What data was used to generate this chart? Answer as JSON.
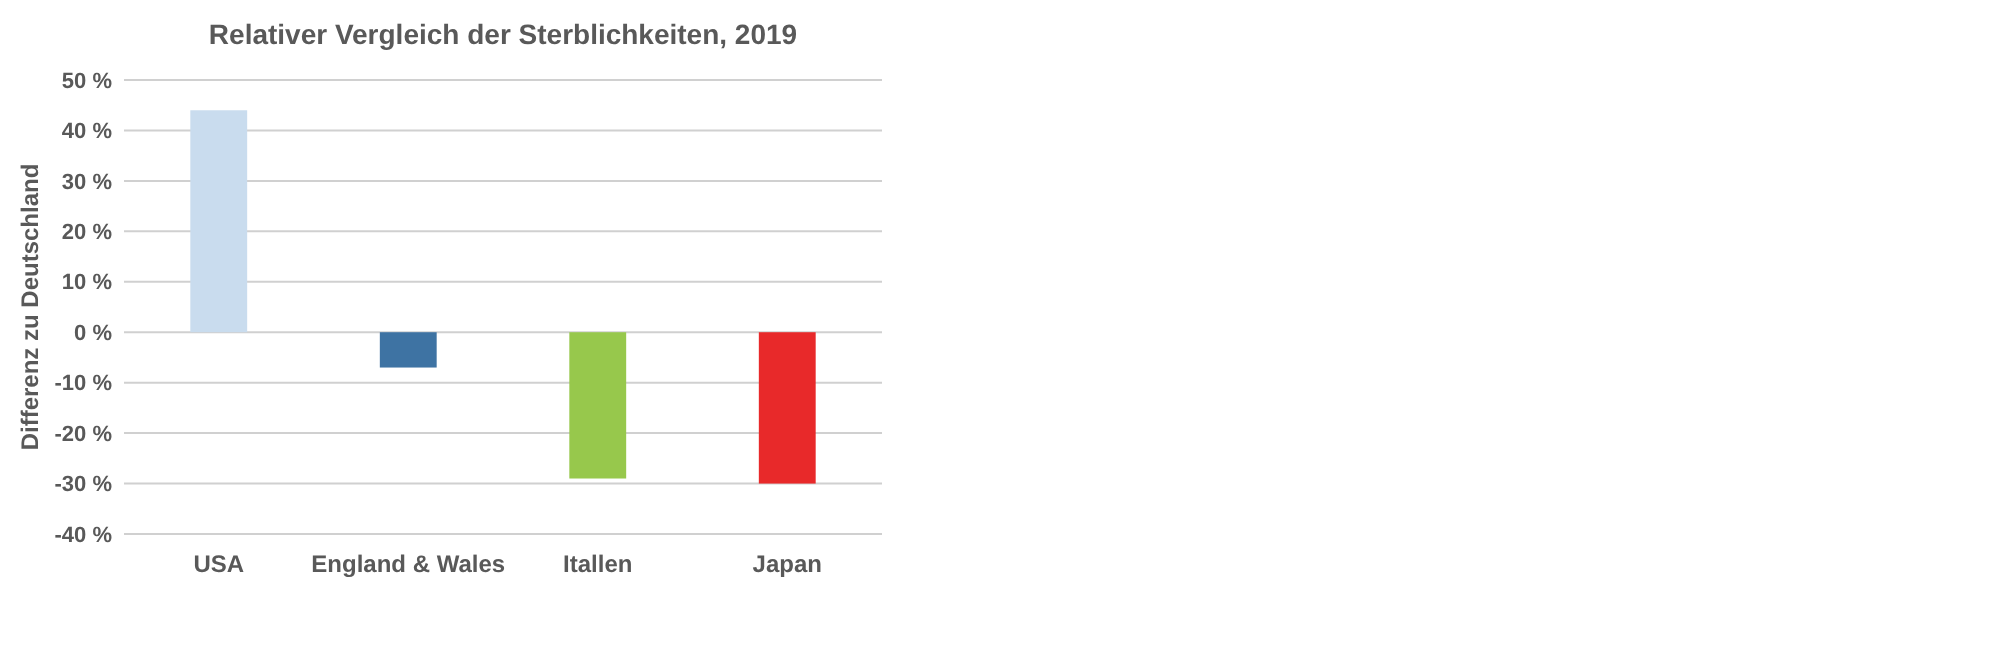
{
  "chart_data": {
    "type": "bar",
    "title": "Relativer Vergleich der Sterblichkeiten, 2019",
    "ylabel": "Differenz zu Deutschland",
    "categories": [
      "USA",
      "England & Wales",
      "Itallen",
      "Japan"
    ],
    "values": [
      44,
      -7,
      -29,
      -30
    ],
    "colors": [
      "#c9dcee",
      "#3e73a3",
      "#97c84c",
      "#e8292a"
    ],
    "ylim": [
      -40,
      50
    ],
    "yticks": [
      {
        "value": 50,
        "label": "50 %"
      },
      {
        "value": 40,
        "label": "40 %"
      },
      {
        "value": 30,
        "label": "30 %"
      },
      {
        "value": 20,
        "label": "20 %"
      },
      {
        "value": 10,
        "label": "10 %"
      },
      {
        "value": 0,
        "label": "0 %"
      },
      {
        "value": -10,
        "label": "-10 %"
      },
      {
        "value": -20,
        "label": "-20 %"
      },
      {
        "value": -30,
        "label": "-30 %"
      },
      {
        "value": -40,
        "label": "-40 %"
      }
    ],
    "grid": "y"
  }
}
